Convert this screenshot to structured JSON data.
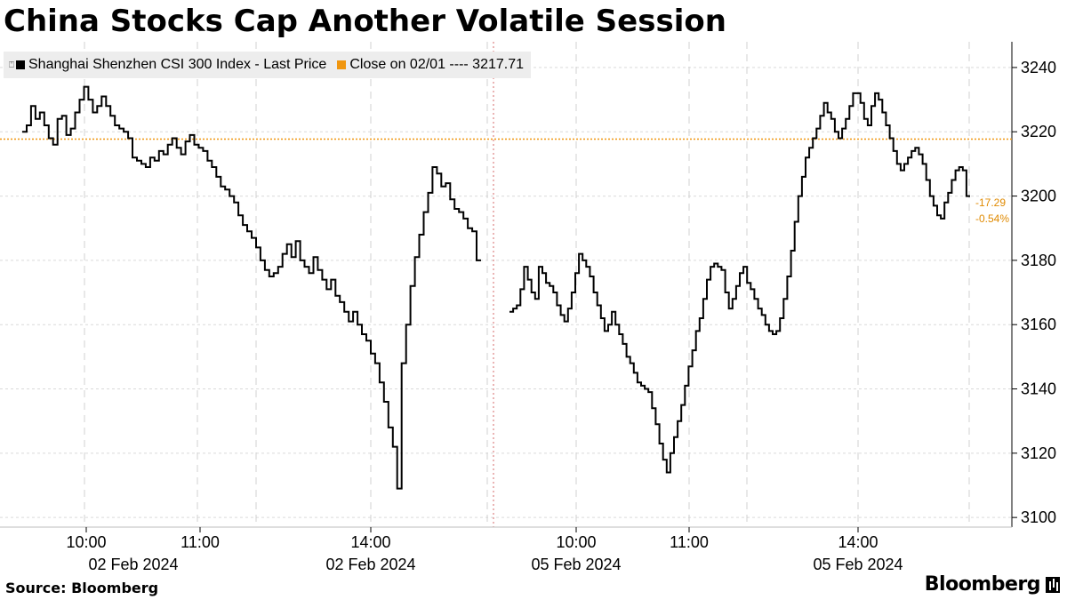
{
  "title": "China Stocks Cap Another Volatile Session",
  "source": "Source: Bloomberg",
  "logo": "Bloomberg",
  "legend": {
    "series_label": "Shanghai Shenzhen CSI 300 Index - Last Price",
    "close_label": "Close on 02/01 ---- 3217.71",
    "series_color": "#000000",
    "close_color": "#f0960f"
  },
  "chart_data": {
    "type": "line",
    "reference_line": {
      "value": 3217.71
    },
    "change_annotation": {
      "abs": "-17.29",
      "pct": "-0.54%"
    },
    "ylim": [
      3097,
      3248
    ],
    "yticks": [
      3100,
      3120,
      3140,
      3160,
      3180,
      3200,
      3220,
      3240
    ],
    "x_tick_labels": [
      {
        "time": "10:00",
        "date": "02 Feb 2024"
      },
      {
        "time": "11:00",
        "date": ""
      },
      {
        "time": "14:00",
        "date": "02 Feb 2024"
      },
      {
        "time": "10:00",
        "date": "05 Feb 2024"
      },
      {
        "time": "11:00",
        "date": ""
      },
      {
        "time": "14:00",
        "date": "05 Feb 2024"
      }
    ],
    "series": [
      {
        "session": "02 Feb 2024",
        "values": [
          3220,
          3222,
          3228,
          3224,
          3226,
          3222,
          3218,
          3216,
          3224,
          3225,
          3219,
          3221,
          3226,
          3230,
          3234,
          3230,
          3226,
          3228,
          3231,
          3228,
          3225,
          3222,
          3221,
          3220,
          3218,
          3212,
          3211,
          3210,
          3209,
          3212,
          3211,
          3214,
          3213,
          3216,
          3218,
          3215,
          3213,
          3217,
          3219,
          3216,
          3215,
          3214,
          3211,
          3209,
          3206,
          3203,
          3202,
          3200,
          3198,
          3194,
          3191,
          3189,
          3187,
          3184,
          3180,
          3177,
          3175,
          3176,
          3178,
          3182,
          3185,
          3181,
          3186,
          3180,
          3178,
          3176,
          3181,
          3177,
          3174,
          3171,
          3174,
          3169,
          3167,
          3164,
          3161,
          3164,
          3160,
          3157,
          3155,
          3151,
          3148,
          3142,
          3136,
          3128,
          3122,
          3109,
          3148,
          3160,
          3172,
          3181,
          3188,
          3195,
          3201,
          3209,
          3207,
          3203,
          3204,
          3199,
          3196,
          3195,
          3193,
          3190,
          3189,
          3180
        ]
      },
      {
        "session": "05 Feb 2024",
        "values": [
          3164,
          3165,
          3166,
          3171,
          3178,
          3174,
          3170,
          3168,
          3178,
          3176,
          3173,
          3172,
          3170,
          3166,
          3163,
          3161,
          3165,
          3170,
          3176,
          3182,
          3180,
          3178,
          3175,
          3170,
          3166,
          3162,
          3158,
          3160,
          3164,
          3160,
          3157,
          3154,
          3150,
          3148,
          3145,
          3142,
          3141,
          3140,
          3139,
          3134,
          3129,
          3123,
          3118,
          3114,
          3120,
          3125,
          3130,
          3135,
          3141,
          3147,
          3152,
          3158,
          3162,
          3168,
          3174,
          3178,
          3179,
          3178,
          3177,
          3170,
          3165,
          3168,
          3172,
          3176,
          3178,
          3173,
          3171,
          3168,
          3165,
          3163,
          3160,
          3158,
          3157,
          3158,
          3162,
          3168,
          3175,
          3183,
          3192,
          3200,
          3206,
          3212,
          3215,
          3218,
          3221,
          3225,
          3229,
          3226,
          3224,
          3220,
          3218,
          3221,
          3224,
          3228,
          3232,
          3232,
          3229,
          3224,
          3222,
          3228,
          3232,
          3230,
          3226,
          3222,
          3218,
          3214,
          3210,
          3208,
          3210,
          3212,
          3214,
          3215,
          3213,
          3210,
          3205,
          3200,
          3197,
          3194,
          3193,
          3198,
          3201,
          3205,
          3208,
          3209,
          3208,
          3200
        ]
      }
    ]
  }
}
